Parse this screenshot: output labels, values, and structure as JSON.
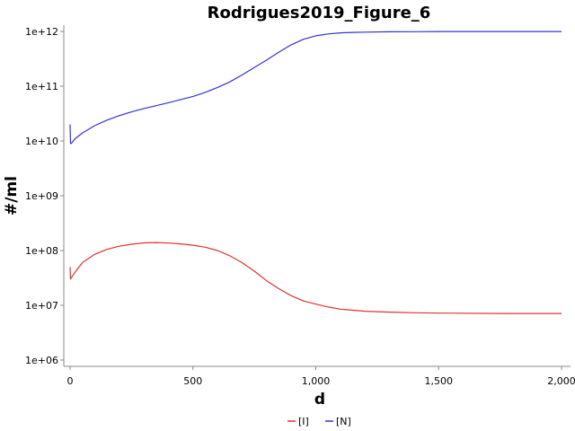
{
  "chart_data": {
    "type": "line",
    "title": "Rodrigues2019_Figure_6",
    "xlabel": "d",
    "ylabel": "#/ml",
    "xlim": [
      -20,
      2000
    ],
    "ylim": [
      1000000,
      1000000000000
    ],
    "yscale": "log",
    "grid": false,
    "legend_position": "bottom-center",
    "x_ticks": [
      0,
      500,
      1000,
      1500,
      2000
    ],
    "x_tick_labels": [
      "0",
      "500",
      "1,000",
      "1,500",
      "2,000"
    ],
    "y_ticks": [
      1000000,
      10000000,
      100000000,
      1000000000,
      10000000000,
      100000000000,
      1000000000000
    ],
    "y_tick_labels": [
      "1e+06",
      "1e+07",
      "1e+08",
      "1e+09",
      "1e+10",
      "1e+11",
      "1e+12"
    ],
    "series": [
      {
        "name": "[I]",
        "color": "#dd3333",
        "x": [
          0,
          2,
          5,
          20,
          50,
          100,
          150,
          200,
          250,
          300,
          350,
          400,
          450,
          500,
          550,
          600,
          650,
          700,
          750,
          800,
          850,
          900,
          950,
          1000,
          1050,
          1100,
          1200,
          1300,
          1400,
          1500,
          1750,
          2000
        ],
        "y": [
          50000000,
          30000000,
          32000000,
          40000000,
          60000000,
          85000000,
          105000000,
          120000000,
          130000000,
          138000000,
          140000000,
          137000000,
          132000000,
          125000000,
          115000000,
          100000000,
          80000000,
          60000000,
          42000000,
          28000000,
          20000000,
          15000000,
          12000000,
          10500000,
          9300000,
          8500000,
          7800000,
          7500000,
          7300000,
          7200000,
          7100000,
          7100000
        ]
      },
      {
        "name": "[N]",
        "color": "#3333cc",
        "x": [
          0,
          2,
          5,
          20,
          50,
          100,
          150,
          200,
          250,
          300,
          350,
          400,
          450,
          500,
          550,
          600,
          650,
          700,
          750,
          800,
          850,
          900,
          950,
          1000,
          1050,
          1100,
          1150,
          1200,
          1300,
          1400,
          1500,
          1750,
          2000
        ],
        "y": [
          20000000000,
          9000000000,
          9000000000,
          11000000000,
          14000000000,
          19000000000,
          24000000000,
          29000000000,
          34000000000,
          39000000000,
          44000000000,
          50000000000,
          57000000000,
          65000000000,
          77000000000,
          95000000000,
          120000000000,
          160000000000,
          220000000000,
          300000000000,
          420000000000,
          570000000000,
          720000000000,
          830000000000,
          900000000000,
          940000000000,
          960000000000,
          970000000000,
          985000000000,
          990000000000,
          995000000000,
          995000000000,
          995000000000
        ]
      }
    ]
  }
}
